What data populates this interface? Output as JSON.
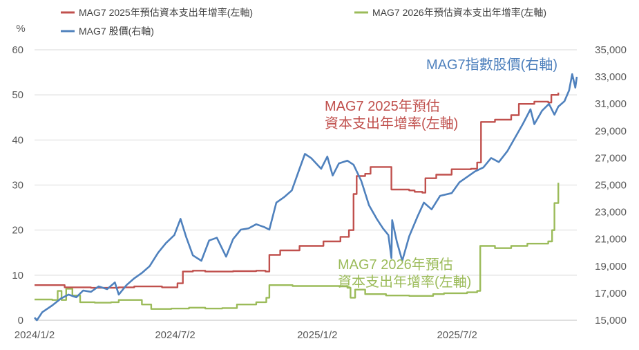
{
  "chart_data": {
    "type": "line",
    "title": "",
    "y_left_unit": "%",
    "y_left_range": [
      0,
      60
    ],
    "y_left_ticks": [
      "0",
      "10",
      "20",
      "30",
      "40",
      "50",
      "60"
    ],
    "y_right_range": [
      15000,
      35000
    ],
    "y_right_ticks": [
      "15,000",
      "17,000",
      "19,000",
      "21,000",
      "23,000",
      "25,000",
      "27,000",
      "29,000",
      "31,000",
      "33,000",
      "35,000"
    ],
    "x_range": [
      "2024-01-02",
      "2025-12-04"
    ],
    "x_ticks": [
      {
        "label": "2024/1/2",
        "date": "2024-01-02"
      },
      {
        "label": "2024/7/2",
        "date": "2024-07-02"
      },
      {
        "label": "2025/1/2",
        "date": "2025-01-02"
      },
      {
        "label": "2025/7/2",
        "date": "2025-07-02"
      }
    ],
    "legend_position": "top",
    "grid": "horizontal",
    "series": [
      {
        "name": "MAG7 2025年預估資本支出年增率(左軸)",
        "axis": "left",
        "color": "#c0504d",
        "annotation": [
          "MAG7 2025年預估",
          "資本支出年增率(左軸)"
        ],
        "points": [
          [
            "2024-01-02",
            7.8
          ],
          [
            "2024-02-01",
            7.8
          ],
          [
            "2024-02-10",
            7.3
          ],
          [
            "2024-03-15",
            7.2
          ],
          [
            "2024-04-20",
            7.3
          ],
          [
            "2024-05-10",
            7.5
          ],
          [
            "2024-06-15",
            7.3
          ],
          [
            "2024-06-27",
            7.3
          ],
          [
            "2024-07-05",
            8.2
          ],
          [
            "2024-07-12",
            10.8
          ],
          [
            "2024-07-25",
            11.0
          ],
          [
            "2024-08-10",
            10.8
          ],
          [
            "2024-09-15",
            10.9
          ],
          [
            "2024-10-15",
            11.0
          ],
          [
            "2024-10-27",
            10.8
          ],
          [
            "2024-11-01",
            14.5
          ],
          [
            "2024-11-15",
            15.5
          ],
          [
            "2024-12-10",
            16.5
          ],
          [
            "2025-01-10",
            17.5
          ],
          [
            "2025-02-01",
            18.5
          ],
          [
            "2025-02-12",
            20.0
          ],
          [
            "2025-02-18",
            28.0
          ],
          [
            "2025-02-22",
            32.0
          ],
          [
            "2025-03-05",
            32.5
          ],
          [
            "2025-03-12",
            34.0
          ],
          [
            "2025-04-06",
            34.0
          ],
          [
            "2025-04-08",
            29.0
          ],
          [
            "2025-05-01",
            28.8
          ],
          [
            "2025-05-08",
            28.5
          ],
          [
            "2025-05-18",
            28.3
          ],
          [
            "2025-05-22",
            31.5
          ],
          [
            "2025-06-05",
            32.3
          ],
          [
            "2025-06-25",
            33.5
          ],
          [
            "2025-07-20",
            33.6
          ],
          [
            "2025-07-28",
            35.0
          ],
          [
            "2025-08-02",
            44.0
          ],
          [
            "2025-08-20",
            44.5
          ],
          [
            "2025-09-10",
            45.5
          ],
          [
            "2025-09-20",
            48.0
          ],
          [
            "2025-10-10",
            48.5
          ],
          [
            "2025-10-28",
            48.3
          ],
          [
            "2025-11-01",
            50.0
          ],
          [
            "2025-11-10",
            50.5
          ]
        ]
      },
      {
        "name": "MAG7 2026年預估資本支出年增率(左軸)",
        "axis": "left",
        "color": "#9bbb59",
        "annotation": [
          "MAG7 2026年預估",
          "資本支出年增率(左軸)"
        ],
        "points": [
          [
            "2024-01-02",
            4.6
          ],
          [
            "2024-01-25",
            4.5
          ],
          [
            "2024-02-01",
            6.5
          ],
          [
            "2024-02-06",
            4.5
          ],
          [
            "2024-02-12",
            7.0
          ],
          [
            "2024-02-20",
            5.5
          ],
          [
            "2024-03-01",
            4.0
          ],
          [
            "2024-03-20",
            3.9
          ],
          [
            "2024-04-10",
            4.0
          ],
          [
            "2024-04-20",
            4.5
          ],
          [
            "2024-05-01",
            4.5
          ],
          [
            "2024-05-15",
            4.5
          ],
          [
            "2024-05-20",
            3.5
          ],
          [
            "2024-06-01",
            2.5
          ],
          [
            "2024-06-27",
            2.6
          ],
          [
            "2024-07-20",
            2.8
          ],
          [
            "2024-08-10",
            2.6
          ],
          [
            "2024-09-01",
            2.7
          ],
          [
            "2024-09-20",
            3.5
          ],
          [
            "2024-10-15",
            4.0
          ],
          [
            "2024-10-28",
            5.0
          ],
          [
            "2024-11-01",
            7.8
          ],
          [
            "2024-12-01",
            7.6
          ],
          [
            "2025-01-01",
            7.6
          ],
          [
            "2025-02-01",
            7.5
          ],
          [
            "2025-02-10",
            7.2
          ],
          [
            "2025-02-14",
            5.0
          ],
          [
            "2025-02-20",
            6.8
          ],
          [
            "2025-03-05",
            5.8
          ],
          [
            "2025-04-01",
            5.5
          ],
          [
            "2025-05-01",
            5.4
          ],
          [
            "2025-06-01",
            5.8
          ],
          [
            "2025-06-15",
            6.0
          ],
          [
            "2025-07-15",
            6.2
          ],
          [
            "2025-07-28",
            6.5
          ],
          [
            "2025-08-01",
            16.5
          ],
          [
            "2025-08-20",
            16.0
          ],
          [
            "2025-09-10",
            16.5
          ],
          [
            "2025-10-01",
            17.0
          ],
          [
            "2025-10-28",
            17.5
          ],
          [
            "2025-11-02",
            20.0
          ],
          [
            "2025-11-05",
            26.0
          ],
          [
            "2025-11-10",
            30.5
          ]
        ]
      },
      {
        "name": "MAG7 股價(右軸)",
        "axis": "right",
        "color": "#4f81bd",
        "annotation": [
          "MAG7指數股價(右軸)"
        ],
        "points": [
          [
            "2024-01-02",
            15200
          ],
          [
            "2024-01-05",
            15000
          ],
          [
            "2024-01-12",
            15600
          ],
          [
            "2024-01-25",
            16100
          ],
          [
            "2024-02-05",
            16600
          ],
          [
            "2024-02-15",
            16900
          ],
          [
            "2024-02-25",
            16700
          ],
          [
            "2024-03-05",
            17200
          ],
          [
            "2024-03-15",
            17100
          ],
          [
            "2024-03-25",
            17500
          ],
          [
            "2024-04-05",
            17300
          ],
          [
            "2024-04-15",
            17800
          ],
          [
            "2024-04-20",
            16900
          ],
          [
            "2024-04-30",
            17600
          ],
          [
            "2024-05-10",
            18100
          ],
          [
            "2024-05-20",
            18500
          ],
          [
            "2024-05-30",
            19000
          ],
          [
            "2024-06-10",
            20000
          ],
          [
            "2024-06-20",
            20700
          ],
          [
            "2024-07-01",
            21300
          ],
          [
            "2024-07-09",
            22500
          ],
          [
            "2024-07-16",
            21200
          ],
          [
            "2024-07-25",
            19800
          ],
          [
            "2024-08-05",
            19400
          ],
          [
            "2024-08-15",
            20900
          ],
          [
            "2024-08-25",
            21100
          ],
          [
            "2024-09-06",
            19700
          ],
          [
            "2024-09-15",
            21000
          ],
          [
            "2024-09-25",
            21700
          ],
          [
            "2024-10-05",
            21800
          ],
          [
            "2024-10-15",
            22100
          ],
          [
            "2024-10-25",
            21900
          ],
          [
            "2024-11-01",
            21700
          ],
          [
            "2024-11-10",
            23700
          ],
          [
            "2024-11-20",
            24100
          ],
          [
            "2024-11-30",
            24600
          ],
          [
            "2024-12-10",
            26200
          ],
          [
            "2024-12-17",
            27300
          ],
          [
            "2024-12-25",
            27000
          ],
          [
            "2025-01-07",
            26200
          ],
          [
            "2025-01-15",
            27100
          ],
          [
            "2025-01-22",
            25700
          ],
          [
            "2025-01-30",
            26600
          ],
          [
            "2025-02-10",
            26800
          ],
          [
            "2025-02-18",
            26500
          ],
          [
            "2025-02-28",
            25300
          ],
          [
            "2025-03-10",
            23500
          ],
          [
            "2025-03-20",
            22500
          ],
          [
            "2025-03-28",
            21800
          ],
          [
            "2025-04-04",
            21300
          ],
          [
            "2025-04-08",
            19600
          ],
          [
            "2025-04-09",
            22400
          ],
          [
            "2025-04-15",
            20800
          ],
          [
            "2025-04-22",
            19400
          ],
          [
            "2025-05-01",
            21200
          ],
          [
            "2025-05-12",
            22700
          ],
          [
            "2025-05-20",
            23700
          ],
          [
            "2025-05-30",
            23200
          ],
          [
            "2025-06-10",
            24200
          ],
          [
            "2025-06-25",
            24400
          ],
          [
            "2025-07-05",
            25200
          ],
          [
            "2025-07-15",
            25600
          ],
          [
            "2025-07-25",
            26000
          ],
          [
            "2025-08-05",
            26300
          ],
          [
            "2025-08-15",
            27000
          ],
          [
            "2025-08-25",
            26700
          ],
          [
            "2025-09-05",
            27500
          ],
          [
            "2025-09-15",
            28500
          ],
          [
            "2025-09-25",
            29500
          ],
          [
            "2025-10-05",
            30600
          ],
          [
            "2025-10-10",
            29500
          ],
          [
            "2025-10-20",
            30500
          ],
          [
            "2025-10-29",
            31000
          ],
          [
            "2025-11-05",
            30200
          ],
          [
            "2025-11-10",
            30800
          ],
          [
            "2025-11-18",
            31200
          ],
          [
            "2025-11-24",
            32000
          ],
          [
            "2025-11-28",
            33200
          ],
          [
            "2025-12-02",
            32200
          ],
          [
            "2025-12-04",
            33000
          ]
        ]
      }
    ]
  }
}
